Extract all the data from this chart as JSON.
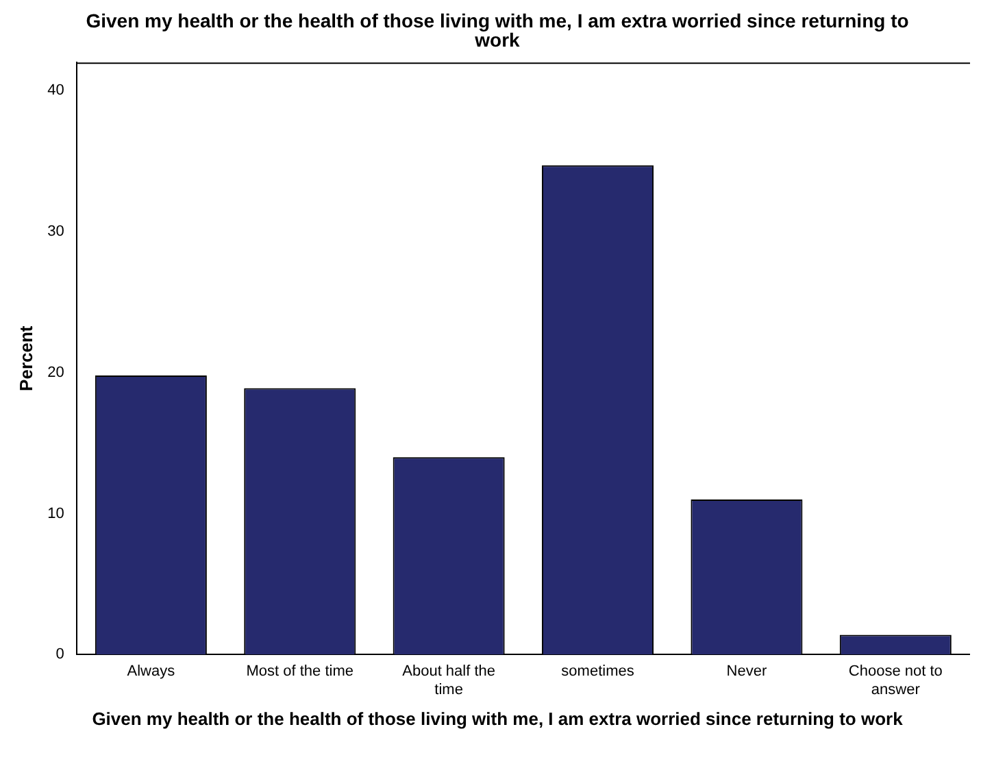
{
  "chart_data": {
    "type": "bar",
    "title": "Given my health or the health of those living with me, I am extra worried since returning to work",
    "xlabel": "Given my health or the health of those living with me, I am extra worried since returning to work",
    "ylabel": "Percent",
    "categories": [
      "Always",
      "Most of the time",
      "About half the time",
      "sometimes",
      "Never",
      "Choose not to answer"
    ],
    "values": [
      19.8,
      18.9,
      14.0,
      34.7,
      11.0,
      1.4
    ],
    "color": "#262a6e",
    "ylim": [
      0,
      42
    ],
    "yticks": [
      0,
      10,
      20,
      30,
      40
    ],
    "grid": false,
    "legend": false
  }
}
